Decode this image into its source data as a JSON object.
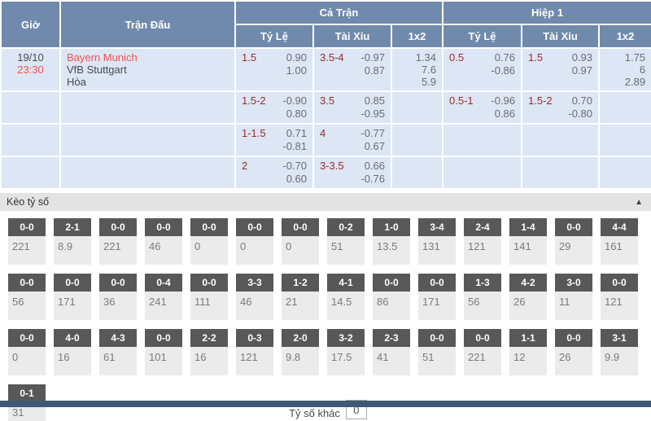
{
  "colors": {
    "header_blue": "#6f8aad",
    "row_blue": "#dce6f5",
    "accent_red": "#f4524f",
    "line_dark_red": "#9c2b28",
    "score_box_dark": "#58585a",
    "bottom_bar": "#3c5a78"
  },
  "table": {
    "headers": {
      "time": "Giờ",
      "match": "Trận Đấu",
      "full_match": "Cả Trận",
      "first_half": "Hiệp 1",
      "handicap": "Tỷ Lệ",
      "over_under": "Tài Xỉu",
      "one_x_two": "1x2"
    },
    "rows": [
      {
        "date": "19/10",
        "time": "23:30",
        "home": "Bayern Munich",
        "away": "VfB Stuttgart",
        "draw": "Hòa",
        "ft_hdp": {
          "line": "1.5",
          "v1": "0.90",
          "v2": "1.00"
        },
        "ft_ou": {
          "line": "3.5-4",
          "v1": "-0.97",
          "v2": "0.87"
        },
        "ft_1x2": [
          "1.34",
          "7.6",
          "5.9"
        ],
        "h1_hdp": {
          "line": "0.5",
          "v1": "0.76",
          "v2": "-0.86"
        },
        "h1_ou": {
          "line": "1.5",
          "v1": "0.93",
          "v2": "0.97"
        },
        "h1_1x2": [
          "1.75",
          "6",
          "2.89"
        ]
      },
      {
        "date": "",
        "time": "",
        "home": "",
        "away": "",
        "draw": "",
        "ft_hdp": {
          "line": "1.5-2",
          "v1": "-0.90",
          "v2": "0.80"
        },
        "ft_ou": {
          "line": "3.5",
          "v1": "0.85",
          "v2": "-0.95"
        },
        "ft_1x2": [],
        "h1_hdp": {
          "line": "0.5-1",
          "v1": "-0.96",
          "v2": "0.86"
        },
        "h1_ou": {
          "line": "1.5-2",
          "v1": "0.70",
          "v2": "-0.80"
        },
        "h1_1x2": []
      },
      {
        "date": "",
        "time": "",
        "home": "",
        "away": "",
        "draw": "",
        "ft_hdp": {
          "line": "1-1.5",
          "v1": "0.71",
          "v2": "-0.81"
        },
        "ft_ou": {
          "line": "4",
          "v1": "-0.77",
          "v2": "0.67"
        },
        "ft_1x2": [],
        "h1_hdp": {
          "line": "",
          "v1": "",
          "v2": ""
        },
        "h1_ou": {
          "line": "",
          "v1": "",
          "v2": ""
        },
        "h1_1x2": []
      },
      {
        "date": "",
        "time": "",
        "home": "",
        "away": "",
        "draw": "",
        "ft_hdp": {
          "line": "2",
          "v1": "-0.70",
          "v2": "0.60"
        },
        "ft_ou": {
          "line": "3-3.5",
          "v1": "0.66",
          "v2": "-0.76"
        },
        "ft_1x2": [],
        "h1_hdp": {
          "line": "",
          "v1": "",
          "v2": ""
        },
        "h1_ou": {
          "line": "",
          "v1": "",
          "v2": ""
        },
        "h1_1x2": []
      }
    ]
  },
  "score_section": {
    "title": "Kèo tỷ số",
    "collapse_icon": "▲",
    "rows": [
      [
        {
          "score": "0-0",
          "odds": "221"
        },
        {
          "score": "2-1",
          "odds": "8.9"
        },
        {
          "score": "0-0",
          "odds": "221"
        },
        {
          "score": "0-0",
          "odds": "46"
        },
        {
          "score": "0-0",
          "odds": "0"
        },
        {
          "score": "0-0",
          "odds": "0"
        },
        {
          "score": "0-0",
          "odds": "0"
        },
        {
          "score": "0-2",
          "odds": "51"
        },
        {
          "score": "1-0",
          "odds": "13.5"
        },
        {
          "score": "3-4",
          "odds": "131"
        },
        {
          "score": "2-4",
          "odds": "121"
        },
        {
          "score": "1-4",
          "odds": "141"
        },
        {
          "score": "0-0",
          "odds": "29"
        },
        {
          "score": "4-4",
          "odds": "161"
        }
      ],
      [
        {
          "score": "0-0",
          "odds": "56"
        },
        {
          "score": "0-0",
          "odds": "171"
        },
        {
          "score": "0-0",
          "odds": "36"
        },
        {
          "score": "0-4",
          "odds": "241"
        },
        {
          "score": "0-0",
          "odds": "111"
        },
        {
          "score": "3-3",
          "odds": "46"
        },
        {
          "score": "1-2",
          "odds": "21"
        },
        {
          "score": "4-1",
          "odds": "14.5"
        },
        {
          "score": "0-0",
          "odds": "86"
        },
        {
          "score": "0-0",
          "odds": "171"
        },
        {
          "score": "1-3",
          "odds": "56"
        },
        {
          "score": "4-2",
          "odds": "26"
        },
        {
          "score": "3-0",
          "odds": "11"
        },
        {
          "score": "0-0",
          "odds": "121"
        }
      ],
      [
        {
          "score": "0-0",
          "odds": "0"
        },
        {
          "score": "4-0",
          "odds": "16"
        },
        {
          "score": "4-3",
          "odds": "61"
        },
        {
          "score": "0-0",
          "odds": "101"
        },
        {
          "score": "2-2",
          "odds": "16"
        },
        {
          "score": "0-3",
          "odds": "121"
        },
        {
          "score": "2-0",
          "odds": "9.8"
        },
        {
          "score": "3-2",
          "odds": "17.5"
        },
        {
          "score": "2-3",
          "odds": "41"
        },
        {
          "score": "0-0",
          "odds": "51"
        },
        {
          "score": "0-0",
          "odds": "221"
        },
        {
          "score": "1-1",
          "odds": "12"
        },
        {
          "score": "0-0",
          "odds": "26"
        },
        {
          "score": "3-1",
          "odds": "9.9"
        }
      ],
      [
        {
          "score": "0-1",
          "odds": "31"
        }
      ]
    ],
    "other_score_label": "Tỷ số khác",
    "other_score_value": "0"
  }
}
